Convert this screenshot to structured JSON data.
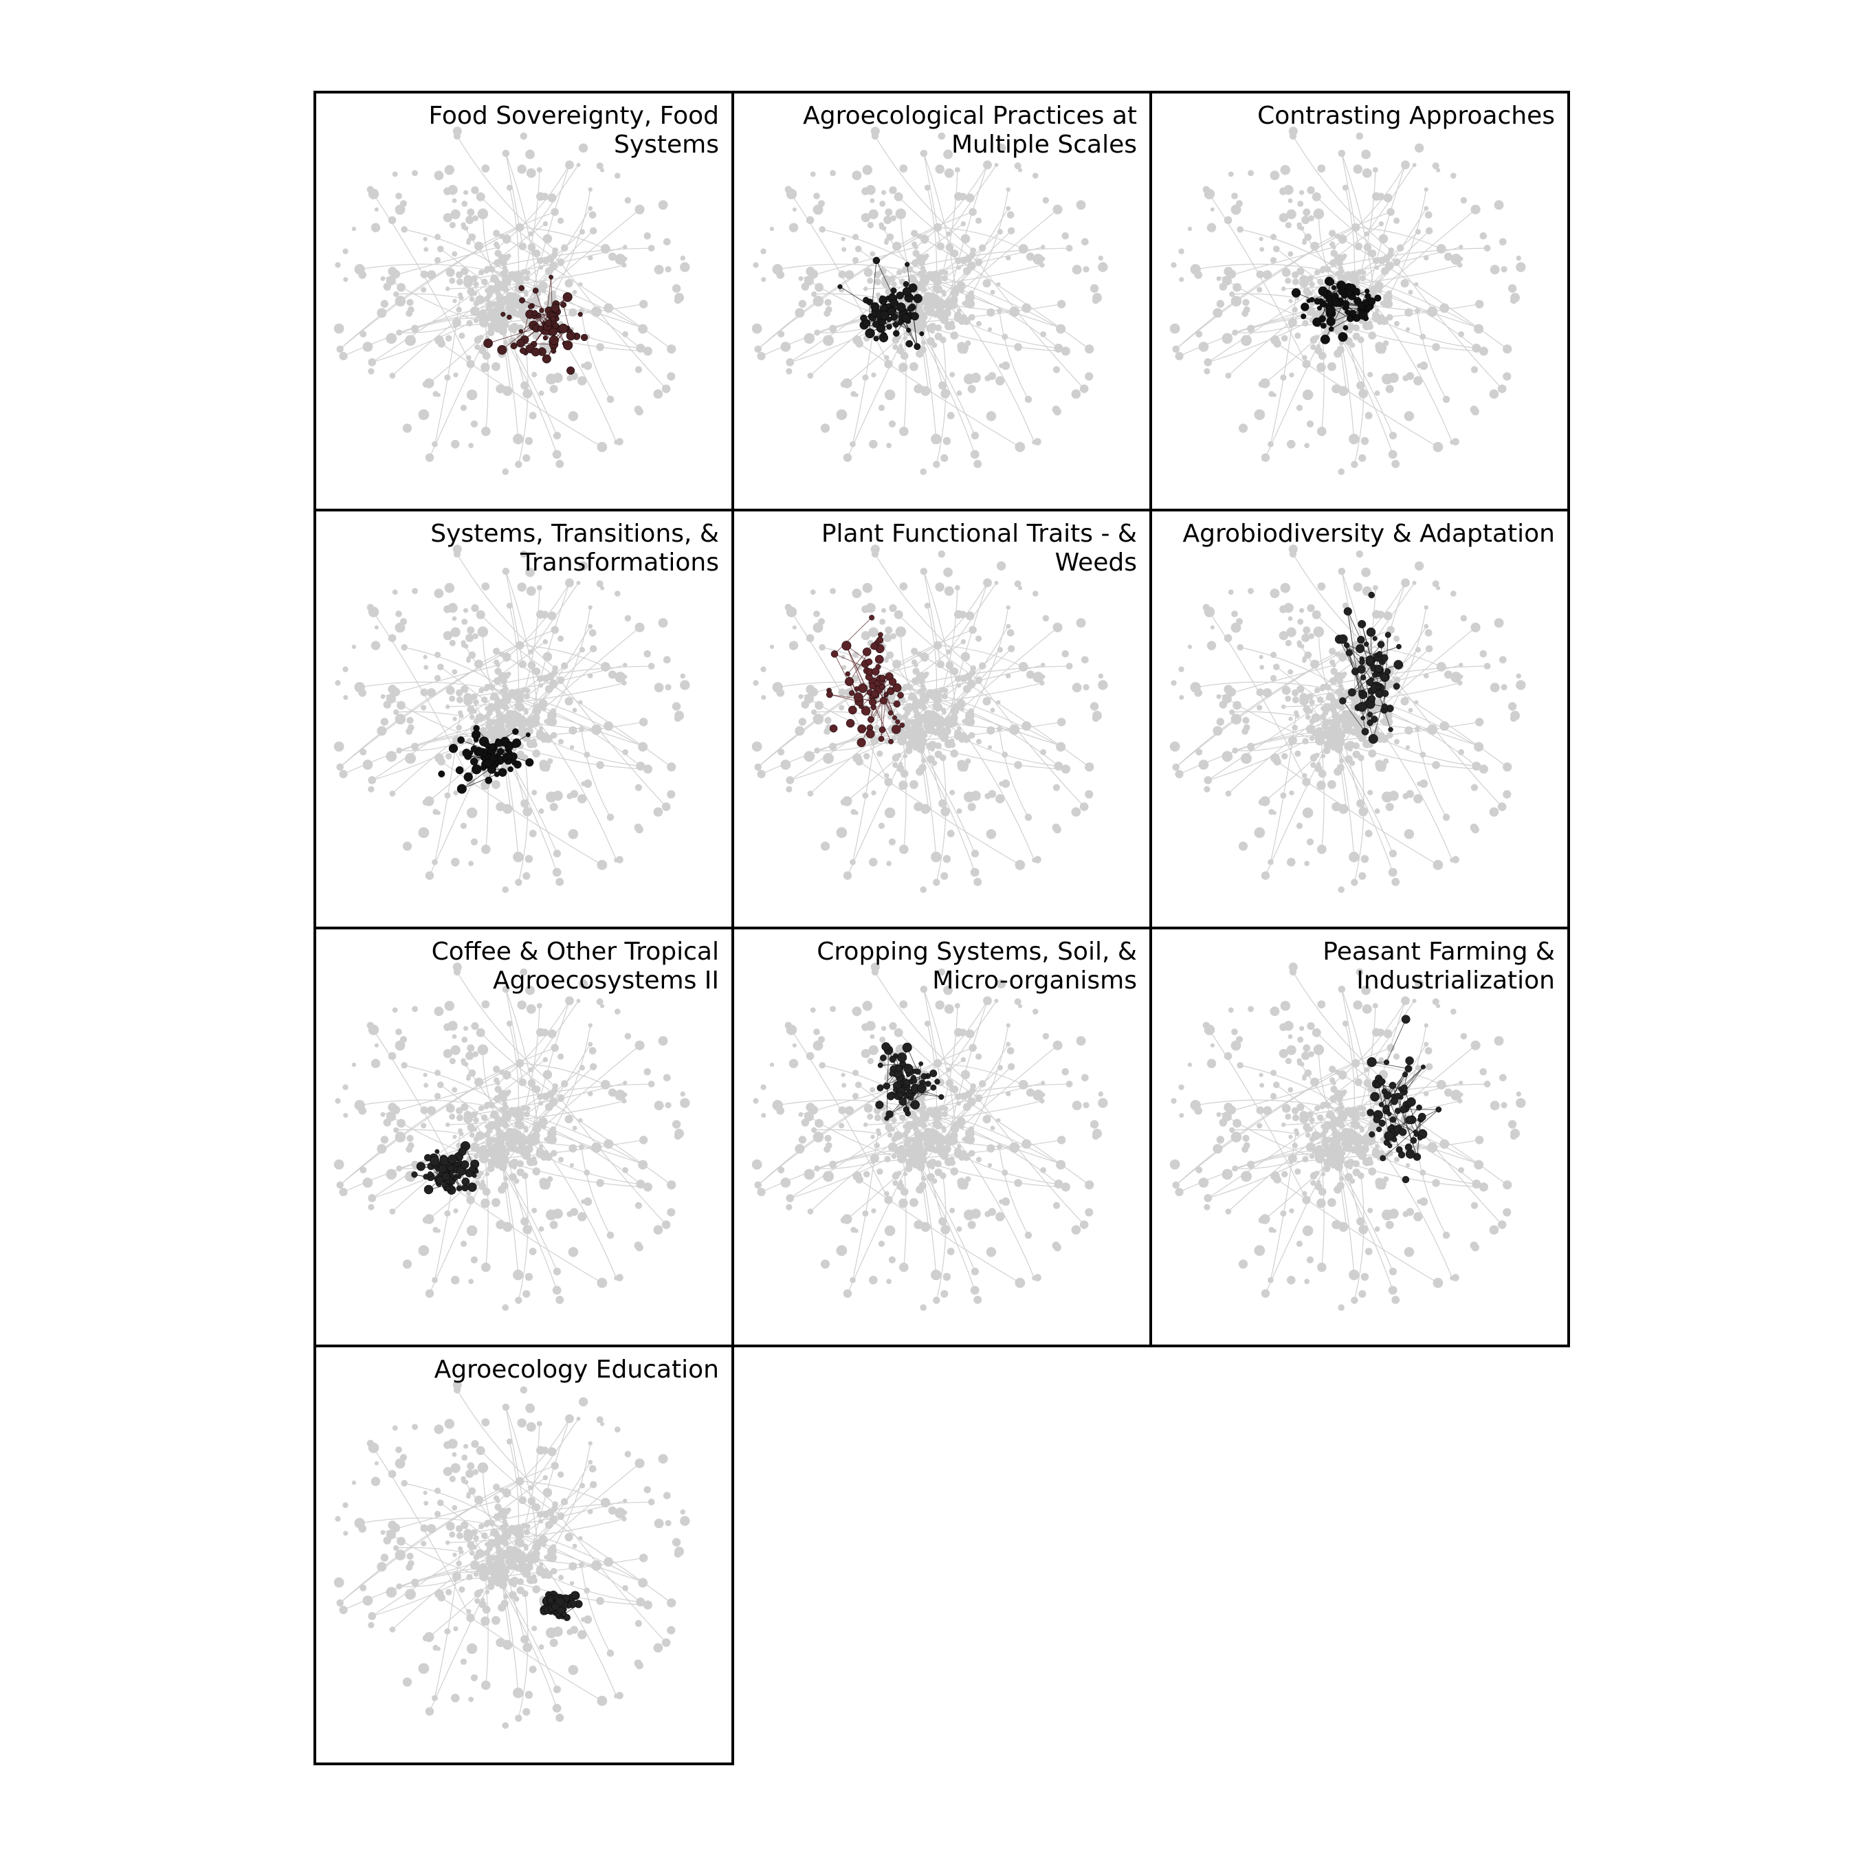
{
  "panels": [
    {
      "title_lines": [
        "Food Sovereignty, Food",
        "Systems"
      ]
    },
    {
      "title_lines": [
        "Agroecological Practices at",
        "Multiple Scales"
      ]
    },
    {
      "title_lines": [
        "Contrasting Approaches"
      ]
    },
    {
      "title_lines": [
        "Systems, Transitions, &",
        "Transformations"
      ]
    },
    {
      "title_lines": [
        "Plant Functional Traits - &",
        "Weeds"
      ]
    },
    {
      "title_lines": [
        "Agrobiodiversity & Adaptation"
      ]
    },
    {
      "title_lines": [
        "Coffee & Other Tropical",
        "Agroecosystems II"
      ]
    },
    {
      "title_lines": [
        "Cropping Systems, Soil, &",
        "Micro-organisms"
      ]
    },
    {
      "title_lines": [
        "Peasant Farming &",
        "Industrialization"
      ]
    },
    {
      "title_lines": [
        "Agroecology Education"
      ]
    }
  ]
}
